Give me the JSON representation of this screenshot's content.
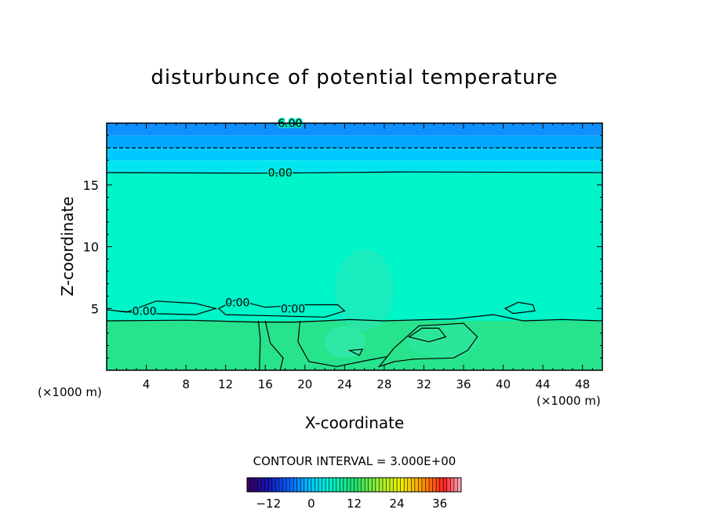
{
  "chart_data": {
    "type": "heatmap",
    "title": "disturbunce of potential temperature",
    "xlabel": "X-coordinate",
    "ylabel": "Z-coordinate",
    "x_unit_label": "(×1000 m)",
    "x_unit_label_right": "(×1000 m)",
    "xlim": [
      0,
      50
    ],
    "ylim": [
      0,
      20
    ],
    "x_ticks": [
      4,
      8,
      12,
      16,
      20,
      24,
      28,
      32,
      36,
      40,
      44,
      48
    ],
    "x_tick_labels": [
      "4",
      "8",
      "12",
      "16",
      "20",
      "24",
      "28",
      "32",
      "36",
      "40",
      "44",
      "48"
    ],
    "y_ticks": [
      5,
      10,
      15
    ],
    "y_tick_labels": [
      "5",
      "10",
      "15"
    ],
    "contour_interval_text": "CONTOUR INTERVAL = 3.000E+00",
    "colorbar": {
      "range": [
        -18,
        42
      ],
      "ticks": [
        -12,
        0,
        12,
        24,
        36
      ],
      "tick_labels": [
        "−12",
        "0",
        "12",
        "24",
        "36"
      ]
    },
    "contour_labels": [
      {
        "text": "6.00",
        "x": 18.5,
        "y": 20
      },
      {
        "text": "0.00",
        "x": 17.5,
        "y": 16
      },
      {
        "text": "0.00",
        "x": 3.8,
        "y": 4.8
      },
      {
        "text": "0.00",
        "x": 18.8,
        "y": 5.0
      },
      {
        "text": "0.00",
        "x": 13.2,
        "y": 5.5
      }
    ],
    "field_bands": [
      {
        "z_range": [
          0,
          4
        ],
        "value": 3,
        "color": "#27e38c"
      },
      {
        "z_range": [
          4,
          16
        ],
        "value": 0,
        "color": "#00f5c8"
      },
      {
        "z_range": [
          16,
          17
        ],
        "value": -3,
        "color": "#00e6f0"
      },
      {
        "z_range": [
          17,
          18
        ],
        "value": -6,
        "color": "#00c8ff"
      },
      {
        "z_range": [
          18,
          19
        ],
        "value": -9,
        "color": "#00a8ff"
      },
      {
        "z_range": [
          19,
          20
        ],
        "value": -12,
        "color": "#1090ff"
      }
    ]
  }
}
